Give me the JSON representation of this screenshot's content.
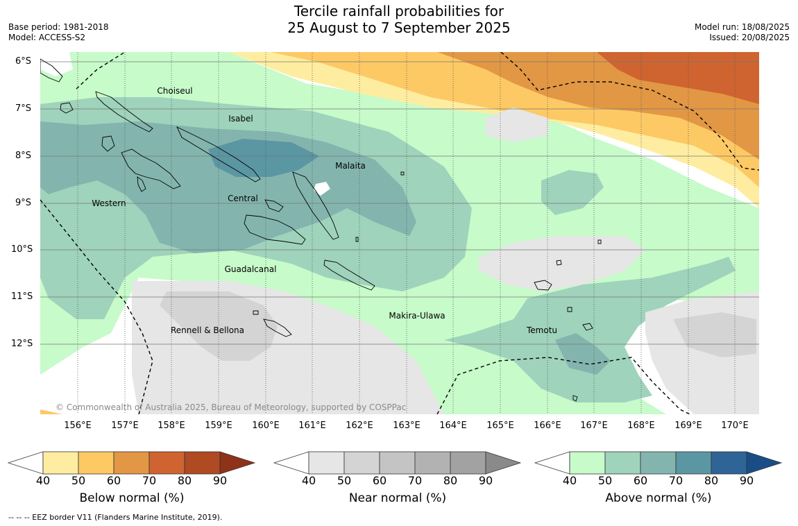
{
  "title_line1": "Tercile rainfall probabilities for",
  "title_line2": "25 August to 7 September 2025",
  "base_period": "Base period: 1981-2018",
  "model": "Model: ACCESS-S2",
  "model_run": "Model run: 18/08/2025",
  "issued": "Issued: 20/08/2025",
  "lat_labels": [
    "6°S",
    "7°S",
    "8°S",
    "9°S",
    "10°S",
    "11°S",
    "12°S"
  ],
  "lon_labels": [
    "156°E",
    "157°E",
    "158°E",
    "159°E",
    "160°E",
    "161°E",
    "162°E",
    "163°E",
    "164°E",
    "165°E",
    "166°E",
    "167°E",
    "168°E",
    "169°E",
    "170°E"
  ],
  "provinces": {
    "choiseul": "Choiseul",
    "isabel": "Isabel",
    "malaita": "Malaita",
    "western": "Western",
    "central": "Central",
    "guadalcanal": "Guadalcanal",
    "makira_ulawa": "Makira-Ulawa",
    "rennell_bellona": "Rennell & Bellona",
    "temotu": "Temotu"
  },
  "copyright": "© Commonwealth of Australia 2025, Bureau of Meteorology, supported by COSPPac",
  "colorbars": {
    "below": {
      "title": "Below normal (%)",
      "ticks": [
        "40",
        "50",
        "60",
        "70",
        "80",
        "90"
      ],
      "colors": [
        "#ffffff",
        "#feeda0",
        "#fdc965",
        "#e29744",
        "#cf6430",
        "#af4a23",
        "#8e3219"
      ]
    },
    "near": {
      "title": "Near normal (%)",
      "ticks": [
        "40",
        "50",
        "60",
        "70",
        "80",
        "90"
      ],
      "colors": [
        "#ffffff",
        "#e6e6e6",
        "#d4d4d4",
        "#c4c4c4",
        "#b2b2b2",
        "#a2a2a2",
        "#8a8a8a"
      ]
    },
    "above": {
      "title": "Above normal (%)",
      "ticks": [
        "40",
        "50",
        "60",
        "70",
        "80",
        "90"
      ],
      "colors": [
        "#ffffff",
        "#c7fbca",
        "#9fd3bb",
        "#83b5ae",
        "#5b96a3",
        "#2f6496",
        "#1a4d88"
      ]
    }
  },
  "footnote": "--  --  -- EEZ border V11 (Flanders Marine Institute, 2019)."
}
